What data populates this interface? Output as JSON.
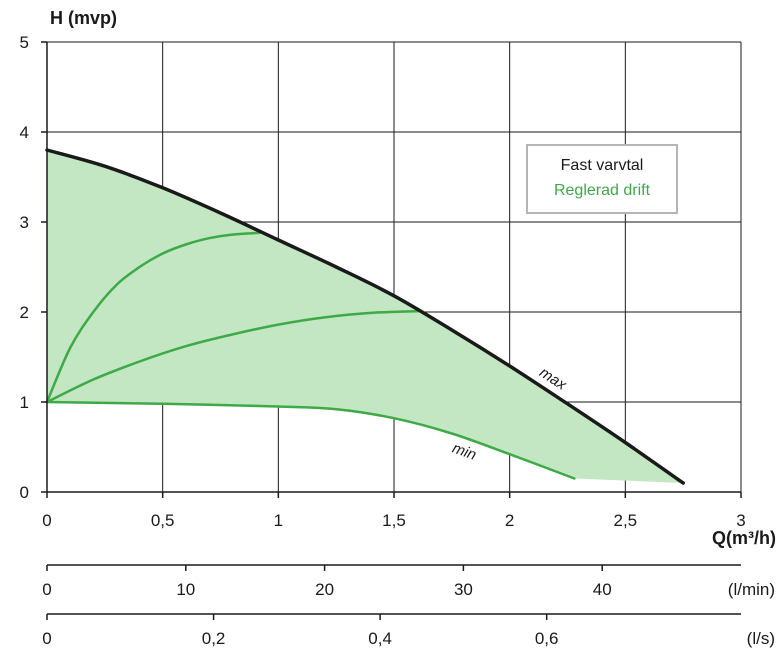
{
  "chart_data": {
    "type": "line",
    "ylabel": "H (mvp)",
    "xlabel": "Q(m³/h)",
    "xlim": [
      0,
      3
    ],
    "ylim": [
      0,
      5
    ],
    "x_ticks": [
      "0",
      "0,5",
      "1",
      "1,5",
      "2",
      "2,5",
      "3"
    ],
    "y_ticks": [
      "0",
      "1",
      "2",
      "3",
      "4",
      "5"
    ],
    "grid": true,
    "legend": {
      "placement": "right",
      "entries": [
        {
          "label": "Fast varvtal",
          "color": "#1a1a1a"
        },
        {
          "label": "Reglerad drift",
          "color": "#3daa47"
        }
      ]
    },
    "series": [
      {
        "name": "max",
        "color": "#1a1a1a",
        "x": [
          0,
          0.25,
          0.5,
          0.75,
          1.0,
          1.25,
          1.5,
          1.75,
          2.0,
          2.25,
          2.5,
          2.75
        ],
        "y": [
          3.8,
          3.62,
          3.38,
          3.1,
          2.8,
          2.5,
          2.18,
          1.8,
          1.4,
          0.98,
          0.55,
          0.1
        ]
      },
      {
        "name": "",
        "color": "#3daa47",
        "x": [
          0,
          0.1,
          0.2,
          0.3,
          0.4,
          0.5,
          0.6,
          0.7,
          0.8,
          0.92
        ],
        "y": [
          1.0,
          1.6,
          2.0,
          2.3,
          2.5,
          2.65,
          2.75,
          2.82,
          2.86,
          2.88
        ]
      },
      {
        "name": "",
        "color": "#3daa47",
        "x": [
          0,
          0.2,
          0.4,
          0.6,
          0.8,
          1.0,
          1.2,
          1.4,
          1.61
        ],
        "y": [
          1.0,
          1.25,
          1.45,
          1.62,
          1.75,
          1.86,
          1.94,
          1.99,
          2.01
        ]
      },
      {
        "name": "min",
        "color": "#3daa47",
        "x": [
          0,
          0.5,
          1.0,
          1.25,
          1.5,
          1.75,
          2.0,
          2.28
        ],
        "y": [
          1.0,
          0.98,
          0.95,
          0.92,
          0.82,
          0.65,
          0.42,
          0.15
        ]
      }
    ],
    "area": {
      "label": "Reglerad drift",
      "color": "#c3e6c3",
      "bounded_by": [
        "max",
        "min"
      ]
    },
    "secondary_axes": [
      {
        "unit": "(l/min)",
        "ticks": [
          "0",
          "10",
          "20",
          "30",
          "40"
        ],
        "values": [
          0,
          10,
          20,
          30,
          40
        ],
        "per_q": 16.6667
      },
      {
        "unit": "(l/s)",
        "ticks": [
          "0",
          "0,2",
          "0,4",
          "0,6"
        ],
        "values": [
          0,
          0.2,
          0.4,
          0.6
        ],
        "per_q": 0.27778
      }
    ],
    "curve_labels": [
      {
        "text": "max",
        "series": "max"
      },
      {
        "text": "min",
        "series": "min"
      }
    ]
  }
}
